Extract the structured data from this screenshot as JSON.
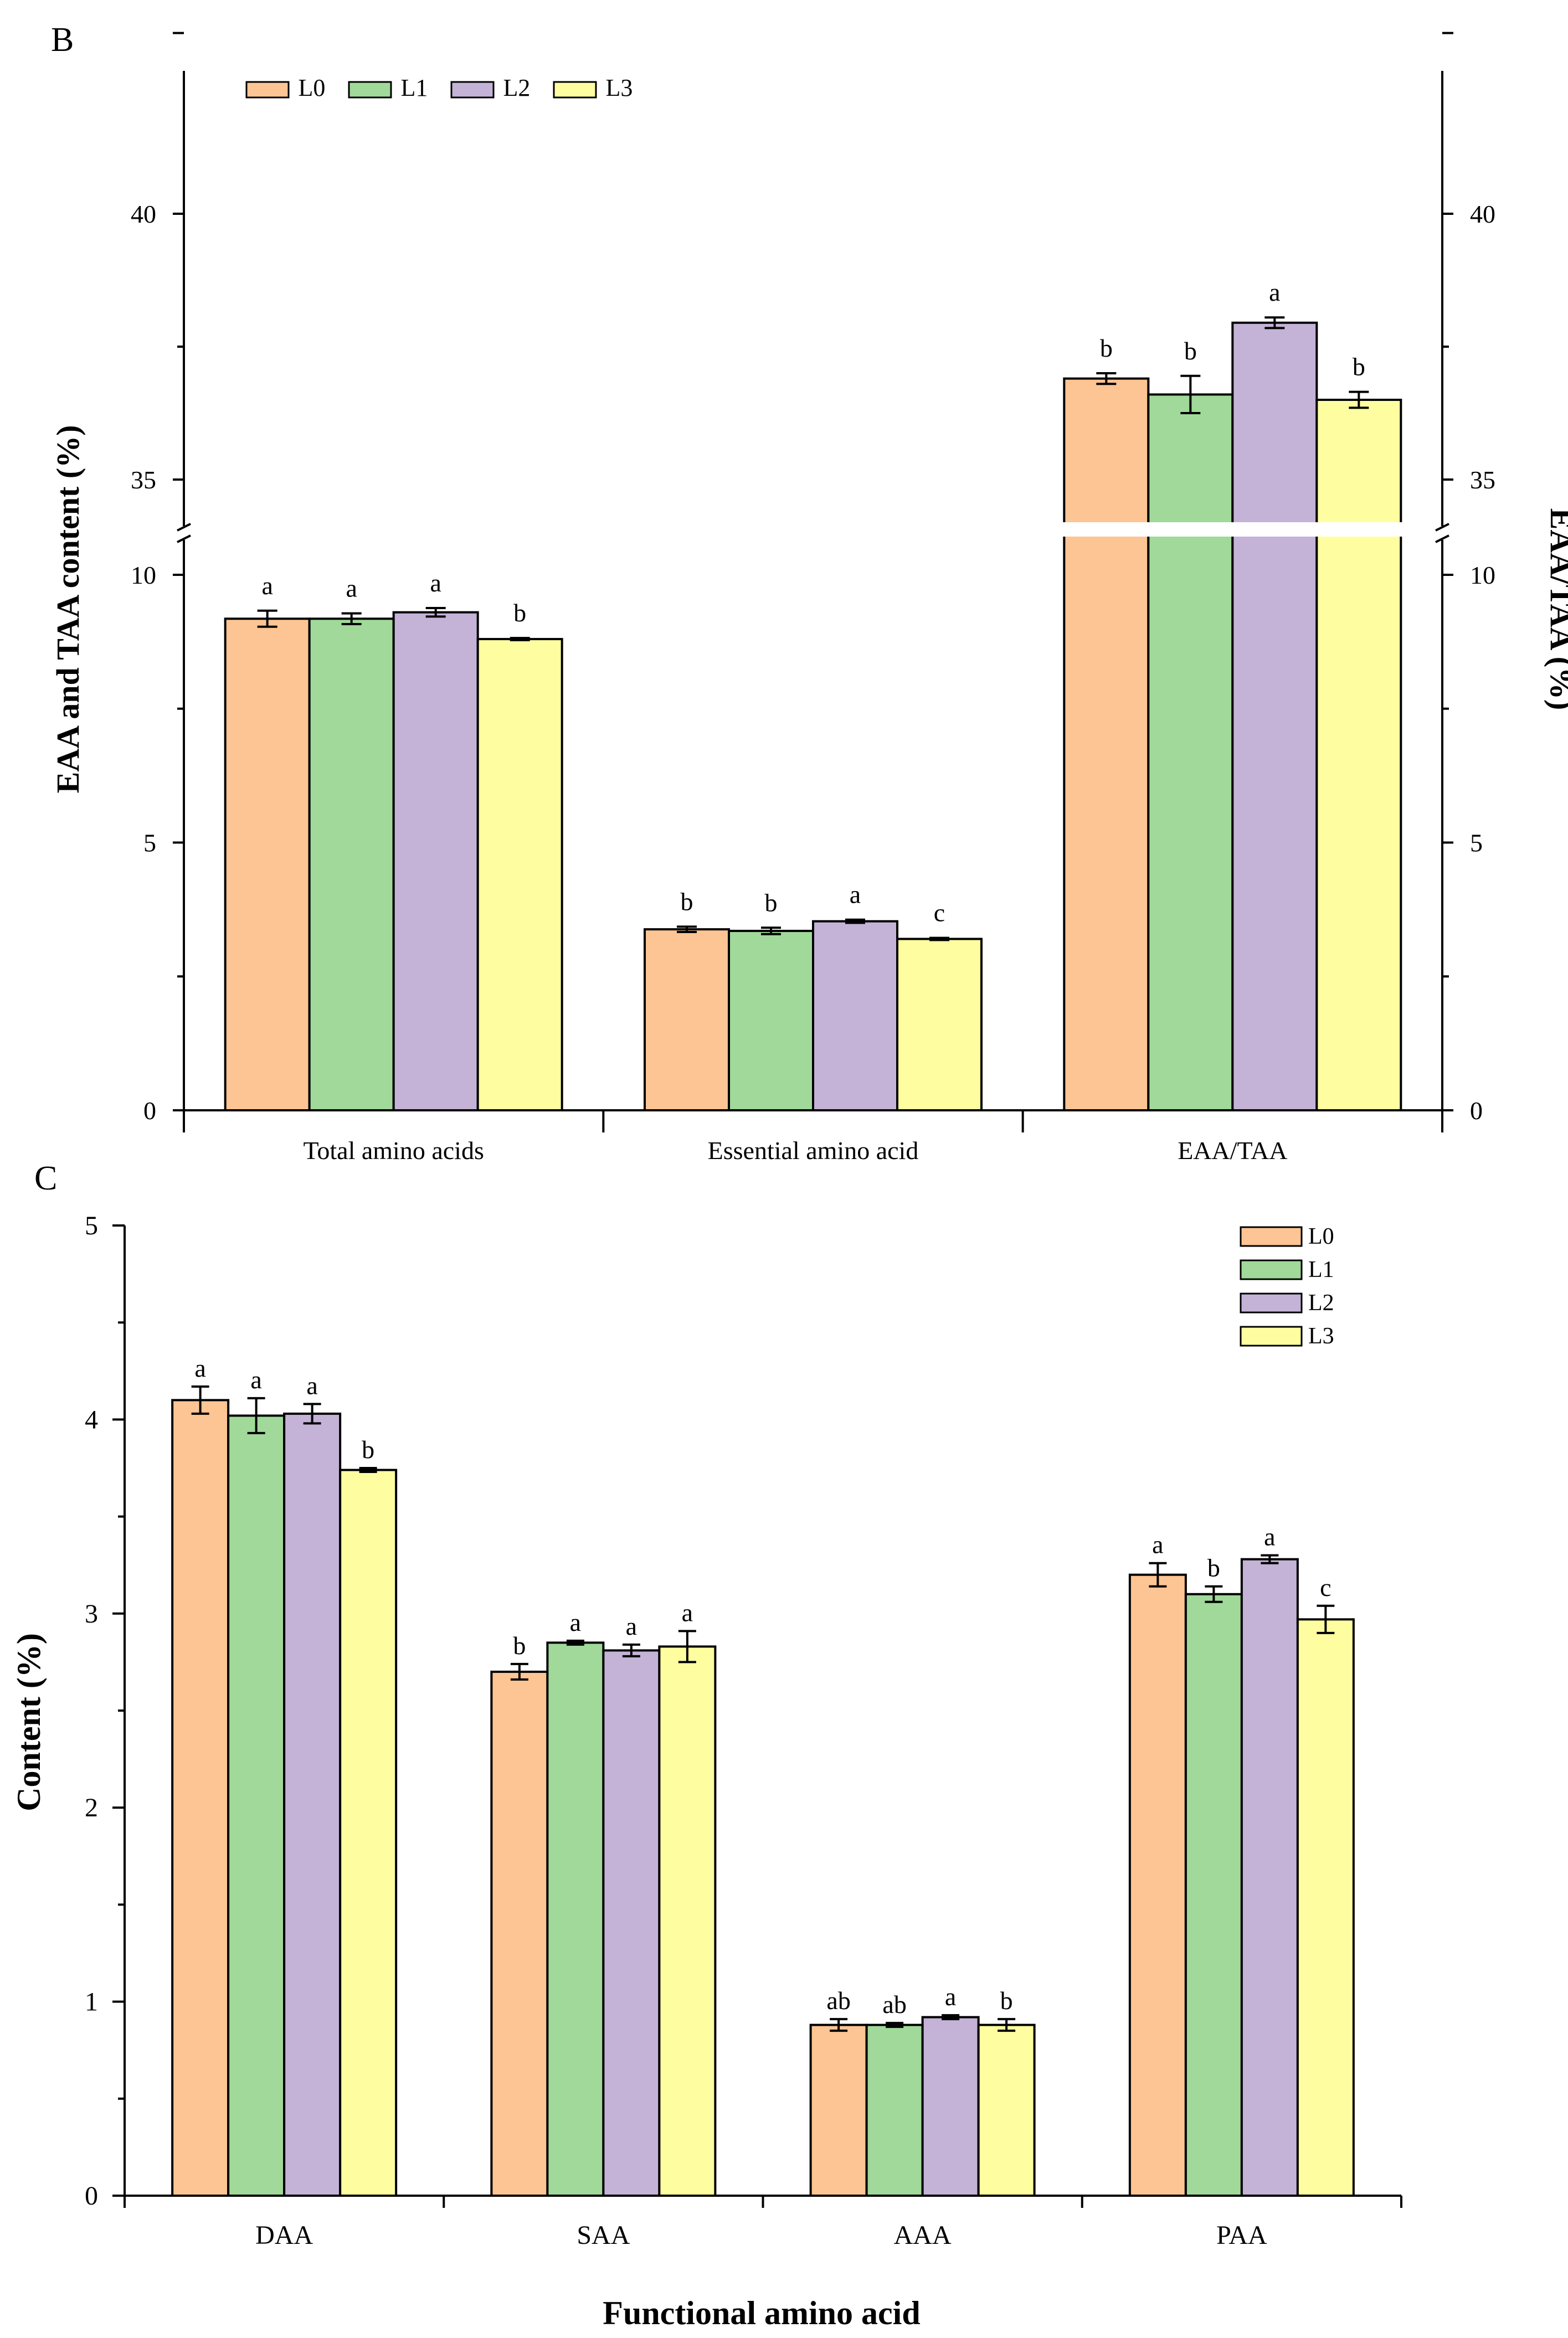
{
  "colors": {
    "L0": "#FCC593",
    "L1": "#A0D999",
    "L2": "#C4B3D7",
    "L3": "#FEFEA0"
  },
  "chart_data": [
    {
      "panel": "B",
      "type": "bar",
      "ylabel": "EAA and TAA content (%)",
      "y2label": "EAA/TAA (%)",
      "categories": [
        "Total amino acids",
        "Essential amino acid",
        "EAA/TAA"
      ],
      "legend": [
        "L0",
        "L1",
        "L2",
        "L3"
      ],
      "legend_position": "top-left",
      "y_ticks_lower": [
        "0",
        "5",
        "10"
      ],
      "y_ticks_upper": [
        "35",
        "40"
      ],
      "ylim_lower": [
        0,
        10.1
      ],
      "ylim_upper": [
        34,
        43.4
      ],
      "axis_break": true,
      "series": [
        {
          "name": "L0",
          "values": [
            9.18,
            3.38,
            36.9
          ],
          "errors": [
            0.15,
            0.05,
            0.1
          ],
          "letters": [
            "a",
            "b",
            "b"
          ]
        },
        {
          "name": "L1",
          "values": [
            9.18,
            3.35,
            36.6
          ],
          "errors": [
            0.1,
            0.06,
            0.35
          ],
          "letters": [
            "a",
            "b",
            "b"
          ]
        },
        {
          "name": "L2",
          "values": [
            9.3,
            3.53,
            37.95
          ],
          "errors": [
            0.08,
            0.03,
            0.1
          ],
          "letters": [
            "a",
            "a",
            "a"
          ]
        },
        {
          "name": "L3",
          "values": [
            8.8,
            3.2,
            36.5
          ],
          "errors": [
            0.02,
            0.02,
            0.15
          ],
          "letters": [
            "b",
            "c",
            "b"
          ]
        }
      ]
    },
    {
      "panel": "C",
      "type": "bar",
      "xlabel": "Functional amino acid",
      "ylabel": "Content (%)",
      "categories": [
        "DAA",
        "SAA",
        "AAA",
        "PAA"
      ],
      "legend": [
        "L0",
        "L1",
        "L2",
        "L3"
      ],
      "legend_position": "top-right",
      "y_ticks": [
        "0",
        "1",
        "2",
        "3",
        "4",
        "5"
      ],
      "ylim": [
        0,
        5
      ],
      "series": [
        {
          "name": "L0",
          "values": [
            4.1,
            2.7,
            0.88,
            3.2
          ],
          "errors": [
            0.07,
            0.04,
            0.03,
            0.06
          ],
          "letters": [
            "a",
            "b",
            "ab",
            "a"
          ]
        },
        {
          "name": "L1",
          "values": [
            4.02,
            2.85,
            0.88,
            3.1
          ],
          "errors": [
            0.09,
            0.01,
            0.01,
            0.04
          ],
          "letters": [
            "a",
            "a",
            "ab",
            "b"
          ]
        },
        {
          "name": "L2",
          "values": [
            4.03,
            2.81,
            0.92,
            3.28
          ],
          "errors": [
            0.05,
            0.03,
            0.01,
            0.02
          ],
          "letters": [
            "a",
            "a",
            "a",
            "a"
          ]
        },
        {
          "name": "L3",
          "values": [
            3.74,
            2.83,
            0.88,
            2.97
          ],
          "errors": [
            0.01,
            0.08,
            0.03,
            0.07
          ],
          "letters": [
            "b",
            "a",
            "b",
            "c"
          ]
        }
      ]
    }
  ]
}
